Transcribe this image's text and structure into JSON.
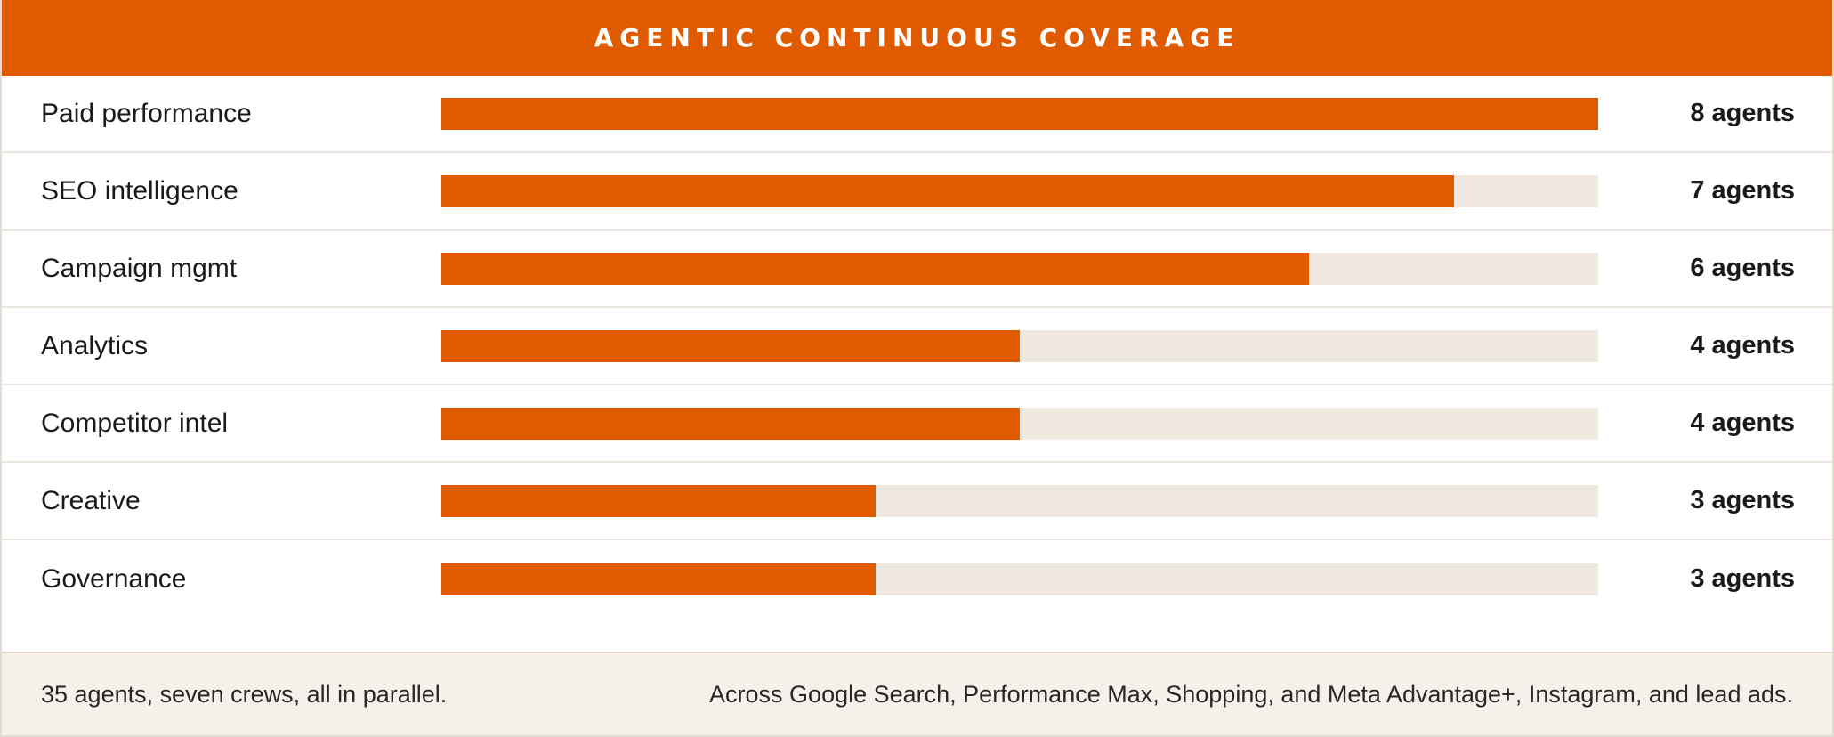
{
  "header": {
    "title": "AGENTIC CONTINUOUS COVERAGE"
  },
  "chart_data": {
    "type": "bar",
    "orientation": "horizontal",
    "title": "AGENTIC CONTINUOUS COVERAGE",
    "categories": [
      "Paid performance",
      "SEO intelligence",
      "Campaign mgmt",
      "Analytics",
      "Competitor intel",
      "Creative",
      "Governance"
    ],
    "values": [
      8,
      7,
      6,
      4,
      4,
      3,
      3
    ],
    "value_labels": [
      "8 agents",
      "7 agents",
      "6 agents",
      "4 agents",
      "4 agents",
      "3 agents",
      "3 agents"
    ],
    "xlim": [
      0,
      8
    ],
    "grid": false,
    "colors": {
      "bar": "#e05a00",
      "track": "#efe9df"
    }
  },
  "footer": {
    "left_text": "35 agents, seven crews, all in parallel.",
    "right_text": "Across Google Search, Performance Max, Shopping, and Meta Advantage+, Instagram, and lead ads."
  }
}
